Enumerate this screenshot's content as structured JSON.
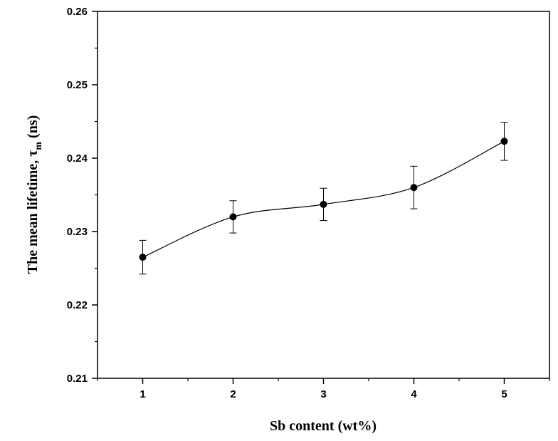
{
  "chart_data": {
    "type": "scatter",
    "x": [
      1,
      2,
      3,
      4,
      5
    ],
    "series": [
      {
        "values": [
          0.2265,
          0.232,
          0.2337,
          0.236,
          0.2423
        ],
        "error": [
          0.0023,
          0.0022,
          0.0022,
          0.0029,
          0.0026
        ],
        "smooth_line": true,
        "marker": "filled-circle",
        "color": "#000000"
      }
    ],
    "xlabel": "Sb content (wt%)",
    "ylabel_main": "The mean lifetime, τ",
    "ylabel_sub": "m",
    "ylabel_units": " (ns)",
    "xlim": [
      0.5,
      5.5
    ],
    "ylim": [
      0.21,
      0.26
    ],
    "x_ticks": [
      1,
      2,
      3,
      4,
      5
    ],
    "x_tick_labels": [
      "1",
      "2",
      "3",
      "4",
      "5"
    ],
    "y_ticks": [
      0.21,
      0.22,
      0.23,
      0.24,
      0.25,
      0.26
    ],
    "y_tick_labels": [
      "0.21",
      "0.22",
      "0.23",
      "0.24",
      "0.25",
      "0.26"
    ],
    "grid": false,
    "legend": "none"
  }
}
